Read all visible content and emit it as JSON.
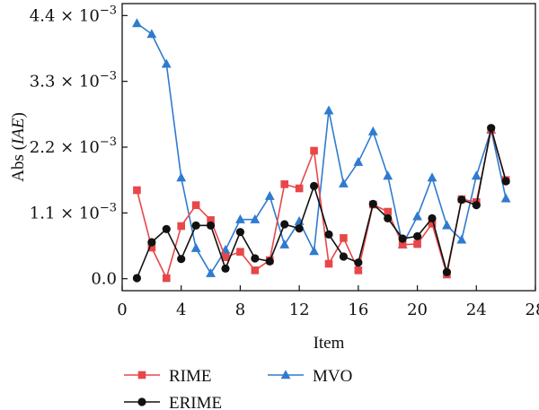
{
  "chart_data": {
    "type": "line",
    "xlabel": "Item",
    "ylabel": {
      "prefix": "Abs (",
      "italic": "IAE",
      "suffix": ")"
    },
    "xlim": [
      0,
      28
    ],
    "ylim": [
      -0.0002,
      0.0046
    ],
    "xticks": [
      0,
      4,
      8,
      12,
      16,
      20,
      24,
      28
    ],
    "xtick_labels": [
      "0",
      "4",
      "8",
      "12",
      "16",
      "20",
      "24",
      "28"
    ],
    "yticks": [
      0.0,
      0.0011,
      0.0022,
      0.0033,
      0.0044
    ],
    "ytick_labels": [
      {
        "mantissa": "0.0",
        "exp": ""
      },
      {
        "mantissa": "1.1 × 10",
        "exp": "−3"
      },
      {
        "mantissa": "2.2 × 10",
        "exp": "−3"
      },
      {
        "mantissa": "3.3 × 10",
        "exp": "−3"
      },
      {
        "mantissa": "4.4 × 10",
        "exp": "−3"
      }
    ],
    "grid": false,
    "legend_position": "bottom",
    "x": [
      1,
      2,
      3,
      4,
      5,
      6,
      7,
      8,
      9,
      10,
      11,
      12,
      13,
      14,
      15,
      16,
      17,
      18,
      19,
      20,
      21,
      22,
      23,
      24,
      25,
      26
    ],
    "series": [
      {
        "name": "RIME",
        "color": "#e8474a",
        "marker": "square",
        "values": [
          0.00148,
          0.00052,
          1e-05,
          0.00088,
          0.00123,
          0.00098,
          0.00036,
          0.00045,
          0.00014,
          0.00031,
          0.00158,
          0.00151,
          0.00214,
          0.00025,
          0.00068,
          0.00014,
          0.00124,
          0.00112,
          0.00057,
          0.00058,
          0.00092,
          7e-05,
          0.00133,
          0.00128,
          0.00249,
          0.00165
        ]
      },
      {
        "name": "ERIME",
        "color": "#111111",
        "marker": "circle",
        "values": [
          1e-05,
          0.00061,
          0.00083,
          0.00033,
          0.00089,
          0.00089,
          0.00017,
          0.00078,
          0.00034,
          0.00029,
          0.00091,
          0.00084,
          0.00155,
          0.00074,
          0.00037,
          0.00027,
          0.00125,
          0.00101,
          0.00067,
          0.00071,
          0.00101,
          0.00011,
          0.00132,
          0.00123,
          0.00252,
          0.00163
        ]
      },
      {
        "name": "MVO",
        "color": "#2f7bcf",
        "marker": "triangle",
        "values": [
          0.00427,
          0.00409,
          0.00359,
          0.00169,
          0.00051,
          9e-05,
          0.00048,
          0.00099,
          0.00099,
          0.00138,
          0.00057,
          0.00096,
          0.00046,
          0.00281,
          0.00159,
          0.00195,
          0.00246,
          0.00172,
          0.00057,
          0.00104,
          0.00169,
          0.00089,
          0.00065,
          0.00172,
          0.00249,
          0.00134
        ]
      }
    ]
  }
}
